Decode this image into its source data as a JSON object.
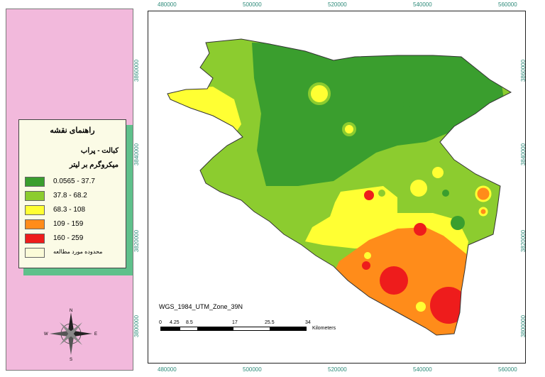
{
  "legend": {
    "title": "راهنمای نقشه",
    "subtitle": "کبالت - پراب",
    "unit": "میکروگرم بر لیتر",
    "items": [
      {
        "label": "0.0565 - 37.7",
        "color": "#3a9e2e"
      },
      {
        "label": "37.8 - 68.2",
        "color": "#8ccc2f"
      },
      {
        "label": "68.3 - 108",
        "color": "#ffff33"
      },
      {
        "label": "109 - 159",
        "color": "#ff8c1a"
      },
      {
        "label": "160 - 259",
        "color": "#ee1c1c"
      },
      {
        "label": "محدوده مورد مطالعه",
        "color": "#fbfbd8"
      }
    ]
  },
  "axes": {
    "x_top": [
      "480000",
      "500000",
      "520000",
      "540000",
      "560000"
    ],
    "x_bottom": [
      "480000",
      "500000",
      "520000",
      "540000",
      "560000"
    ],
    "y_right": [
      "3860000",
      "3840000",
      "3820000",
      "3800000"
    ],
    "y_left": [
      "3860000",
      "3840000",
      "3820000",
      "3800000"
    ]
  },
  "scale": {
    "projection": "WGS_1984_UTM_Zone_39N",
    "ticks": [
      "0",
      "4.25",
      "8.5",
      "17",
      "25.5",
      "34"
    ],
    "unit": "Kilometers"
  },
  "compass": {
    "n": "N",
    "s": "S",
    "e": "E",
    "w": "W"
  }
}
